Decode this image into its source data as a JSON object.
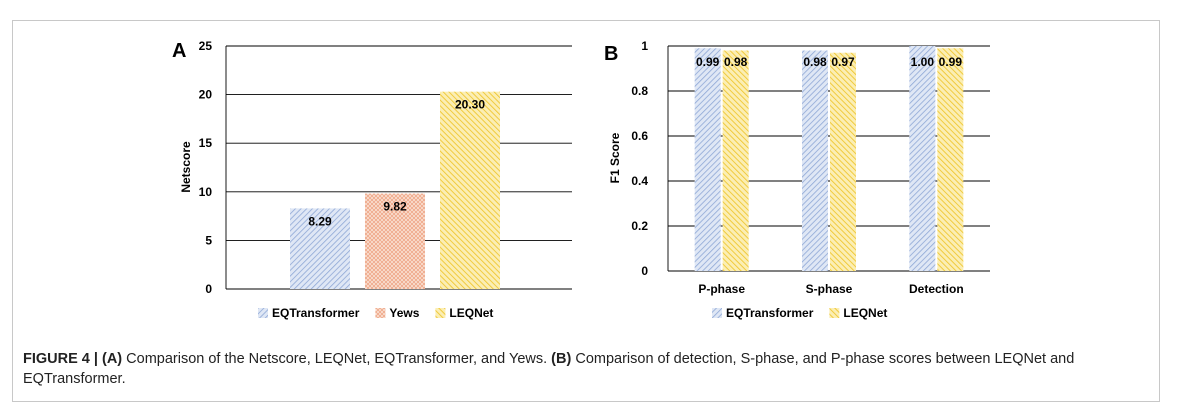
{
  "colors": {
    "EQTransformer": "#a9bce0",
    "Yews": "#f2b69a",
    "LEQNet": "#f4d03f",
    "caption_text": "#222222"
  },
  "chart_data": [
    {
      "panel": "A",
      "type": "bar",
      "title": "",
      "xlabel": "",
      "ylabel": "Netscore",
      "ylim": [
        0,
        25
      ],
      "yticks": [
        "0",
        "5",
        "10",
        "15",
        "20",
        "25"
      ],
      "grid": true,
      "legend": "bottom",
      "series": [
        {
          "name": "EQTransformer",
          "values": [
            8.29
          ],
          "label": "8.29"
        },
        {
          "name": "Yews",
          "values": [
            9.82
          ],
          "label": "9.82"
        },
        {
          "name": "LEQNet",
          "values": [
            20.3
          ],
          "label": "20.30"
        }
      ]
    },
    {
      "panel": "B",
      "type": "bar",
      "title": "",
      "xlabel": "",
      "ylabel": "F1 Score",
      "ylim": [
        0,
        1
      ],
      "yticks": [
        "0",
        "0.2",
        "0.4",
        "0.6",
        "0.8",
        "1"
      ],
      "grid": true,
      "legend": "bottom",
      "categories": [
        "P-phase",
        "S-phase",
        "Detection"
      ],
      "series": [
        {
          "name": "EQTransformer",
          "values": [
            0.99,
            0.98,
            1.0
          ],
          "labels": [
            "0.99",
            "0.98",
            "1.00"
          ]
        },
        {
          "name": "LEQNet",
          "values": [
            0.98,
            0.97,
            0.99
          ],
          "labels": [
            "0.98",
            "0.97",
            "0.99"
          ]
        }
      ]
    }
  ],
  "caption": {
    "figure": "FIGURE 4 |",
    "partA_tag": "(A)",
    "partA_text": " Comparison of the Netscore, LEQNet, EQTransformer, and Yews. ",
    "partB_tag": "(B)",
    "partB_text": " Comparison of detection, S-phase, and P-phase scores between LEQNet and EQTransformer."
  }
}
